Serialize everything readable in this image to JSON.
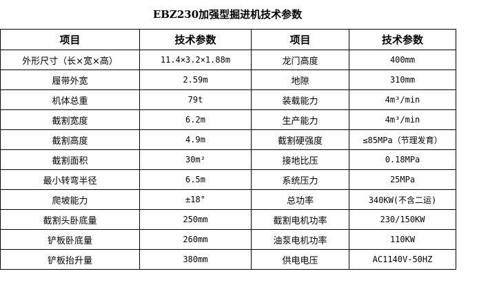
{
  "title": "EBZ230加强型掘进机技术参数",
  "headers": [
    "项目",
    "技术参数",
    "项目",
    "技术参数"
  ],
  "rows": [
    [
      "外形尺寸（长×宽×高）",
      "11.4×3.2×1.88m",
      "龙门高度",
      "400mm"
    ],
    [
      "履带外宽",
      "2.59m",
      "地隙",
      "310mm"
    ],
    [
      "机体总重",
      "79t",
      "装载能力",
      "4m³/min"
    ],
    [
      "截割宽度",
      "6.2m",
      "生产能力",
      "4m³/min"
    ],
    [
      "截割高度",
      "4.9m",
      "截割硬强度",
      "≤85MPa（节理发育）"
    ],
    [
      "截割面积",
      "30m²",
      "接地比压",
      "0.18MPa"
    ],
    [
      "最小转弯半径",
      "6.5m",
      "系统压力",
      "25MPa"
    ],
    [
      "爬坡能力",
      "±18°",
      "总功率",
      "340KW(不含二运)"
    ],
    [
      "截割头卧底量",
      "250mm",
      "截割电机功率",
      "230/150KW"
    ],
    [
      "铲板卧底量",
      "260mm",
      "油泵电机功率",
      "110KW"
    ],
    [
      "铲板抬升量",
      "380mm",
      "供电电压",
      "AC1140V-50HZ"
    ]
  ]
}
